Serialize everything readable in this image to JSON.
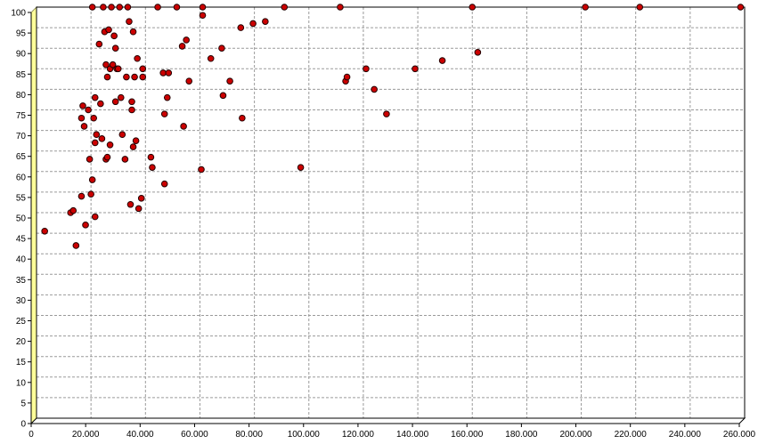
{
  "chart_data": {
    "type": "scatter",
    "title": "",
    "xlabel": "",
    "ylabel": "",
    "xlim": [
      0,
      260000
    ],
    "ylim": [
      0,
      100
    ],
    "x_ticks": [
      0,
      20000,
      40000,
      60000,
      80000,
      100000,
      120000,
      140000,
      160000,
      180000,
      200000,
      220000,
      240000,
      260000
    ],
    "x_tick_labels": [
      "0",
      "20.000",
      "40.000",
      "60.000",
      "80.000",
      "100.000",
      "120.000",
      "140.000",
      "160.000",
      "180.000",
      "200.000",
      "220.000",
      "240.000",
      "260.000"
    ],
    "y_ticks": [
      0,
      5,
      10,
      15,
      20,
      25,
      30,
      35,
      40,
      45,
      50,
      55,
      60,
      65,
      70,
      75,
      80,
      85,
      90,
      95,
      100
    ],
    "y_tick_labels": [
      "0",
      "5",
      "10",
      "15",
      "20",
      "25",
      "30",
      "35",
      "40",
      "45",
      "50",
      "55",
      "60",
      "65",
      "70",
      "75",
      "80",
      "85",
      "90",
      "95",
      "100"
    ],
    "grid": true,
    "legend": "none",
    "colors": {
      "point": "#cc0000",
      "point_edge": "#220000",
      "wall": "#ffff99",
      "wall_edge": "#999966",
      "grid": "#9a9a9a"
    },
    "points": [
      [
        3000,
        45.5
      ],
      [
        12500,
        50
      ],
      [
        13500,
        50.5
      ],
      [
        14500,
        42
      ],
      [
        16500,
        54
      ],
      [
        17000,
        76
      ],
      [
        16500,
        73
      ],
      [
        17500,
        71
      ],
      [
        18000,
        47
      ],
      [
        19000,
        75
      ],
      [
        19500,
        63
      ],
      [
        20500,
        58
      ],
      [
        20000,
        54.5
      ],
      [
        21000,
        73
      ],
      [
        21500,
        67
      ],
      [
        21500,
        78
      ],
      [
        22000,
        69
      ],
      [
        21500,
        49
      ],
      [
        20500,
        100
      ],
      [
        23000,
        91
      ],
      [
        23500,
        76.5
      ],
      [
        24000,
        68
      ],
      [
        24500,
        100
      ],
      [
        25000,
        94
      ],
      [
        25500,
        86
      ],
      [
        25500,
        63
      ],
      [
        26000,
        83
      ],
      [
        26000,
        63.5
      ],
      [
        26500,
        94.5
      ],
      [
        27000,
        85
      ],
      [
        27000,
        66.5
      ],
      [
        27500,
        100
      ],
      [
        28000,
        86
      ],
      [
        28500,
        93
      ],
      [
        29000,
        90
      ],
      [
        29000,
        77
      ],
      [
        29500,
        85
      ],
      [
        30000,
        85
      ],
      [
        30500,
        100
      ],
      [
        31000,
        78
      ],
      [
        31500,
        69
      ],
      [
        32500,
        63
      ],
      [
        33000,
        83
      ],
      [
        33500,
        100
      ],
      [
        34000,
        96.5
      ],
      [
        34500,
        52
      ],
      [
        35000,
        77
      ],
      [
        35000,
        75
      ],
      [
        35500,
        94
      ],
      [
        36000,
        83
      ],
      [
        35500,
        66
      ],
      [
        36500,
        67.5
      ],
      [
        37000,
        87.5
      ],
      [
        37500,
        51
      ],
      [
        38500,
        53.5
      ],
      [
        39000,
        85
      ],
      [
        39000,
        83
      ],
      [
        42000,
        63.5
      ],
      [
        42500,
        61
      ],
      [
        44500,
        100
      ],
      [
        46500,
        84
      ],
      [
        47000,
        74
      ],
      [
        47000,
        57
      ],
      [
        48000,
        78
      ],
      [
        48500,
        84
      ],
      [
        51500,
        100
      ],
      [
        53500,
        90.5
      ],
      [
        54000,
        71
      ],
      [
        55000,
        92
      ],
      [
        56000,
        82
      ],
      [
        60500,
        60.5
      ],
      [
        61000,
        100
      ],
      [
        61000,
        98
      ],
      [
        64000,
        87.5
      ],
      [
        68000,
        90
      ],
      [
        68500,
        78.5
      ],
      [
        71000,
        82
      ],
      [
        75000,
        95
      ],
      [
        75500,
        73
      ],
      [
        79500,
        96
      ],
      [
        84000,
        96.5
      ],
      [
        91000,
        100
      ],
      [
        97000,
        61
      ],
      [
        111500,
        100
      ],
      [
        113500,
        82
      ],
      [
        114000,
        83
      ],
      [
        121000,
        85
      ],
      [
        124000,
        80
      ],
      [
        128500,
        74
      ],
      [
        139000,
        85
      ],
      [
        149000,
        87
      ],
      [
        160000,
        100
      ],
      [
        162000,
        89
      ],
      [
        201500,
        100
      ],
      [
        221500,
        100
      ],
      [
        258500,
        100
      ]
    ]
  }
}
